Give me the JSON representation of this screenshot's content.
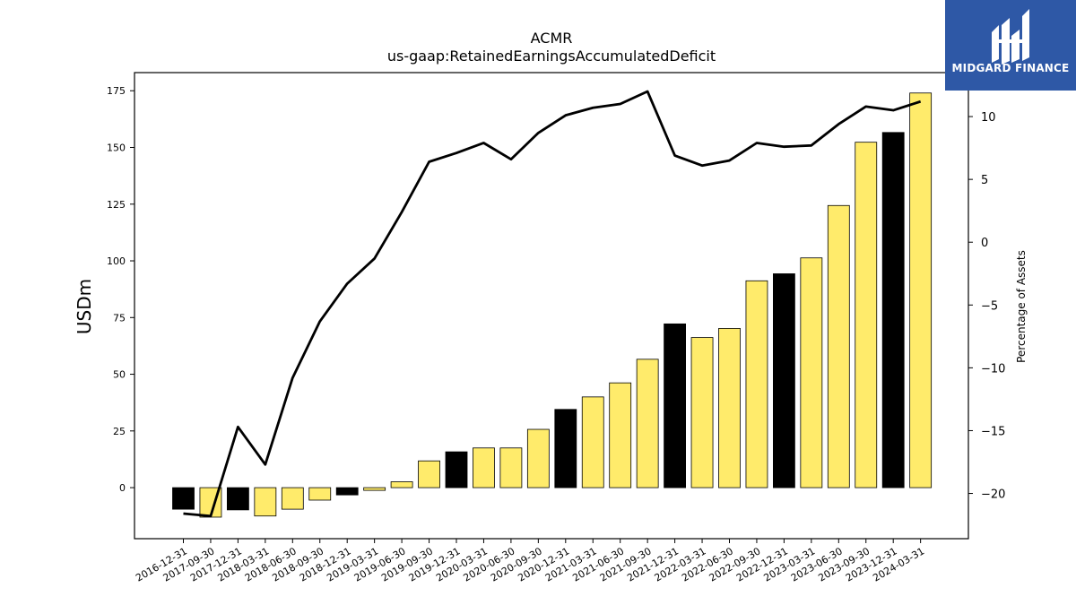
{
  "brand": {
    "name": "MIDGARD FINANCE",
    "bg_color": "#2e58a6"
  },
  "chart_data": {
    "type": "bar",
    "title": "ACMR",
    "subtitle": "us-gaap:RetainedEarningsAccumulatedDeficit",
    "ylabel": "USDm",
    "y2label": "Percentage of Assets",
    "categories": [
      "2016-12-31",
      "2017-09-30",
      "2017-12-31",
      "2018-03-31",
      "2018-06-30",
      "2018-09-30",
      "2018-12-31",
      "2019-03-31",
      "2019-06-30",
      "2019-09-30",
      "2019-12-31",
      "2020-03-31",
      "2020-06-30",
      "2020-09-30",
      "2020-12-31",
      "2021-03-31",
      "2021-06-30",
      "2021-09-30",
      "2021-12-31",
      "2022-03-31",
      "2022-06-30",
      "2022-09-30",
      "2022-12-31",
      "2023-03-31",
      "2023-06-30",
      "2023-09-30",
      "2023-12-31",
      "2024-03-31"
    ],
    "series": [
      {
        "type": "bar",
        "values": [
          -9.5,
          -13,
          -9.8,
          -12.5,
          -9.5,
          -5.5,
          -3.2,
          -1.2,
          2.6,
          11.8,
          15.8,
          17.5,
          17.5,
          25.7,
          34.5,
          40,
          46.2,
          56.6,
          72.2,
          66.2,
          70.2,
          91.2,
          94.3,
          101.3,
          124.4,
          152.3,
          156.6,
          174
        ],
        "colors": [
          "#000000",
          "#ffeb6b",
          "#000000",
          "#ffeb6b",
          "#ffeb6b",
          "#ffeb6b",
          "#000000",
          "#ffeb6b",
          "#ffeb6b",
          "#ffeb6b",
          "#000000",
          "#ffeb6b",
          "#ffeb6b",
          "#ffeb6b",
          "#000000",
          "#ffeb6b",
          "#ffeb6b",
          "#ffeb6b",
          "#000000",
          "#ffeb6b",
          "#ffeb6b",
          "#ffeb6b",
          "#000000",
          "#ffeb6b",
          "#ffeb6b",
          "#ffeb6b",
          "#000000",
          "#ffeb6b"
        ]
      },
      {
        "type": "line",
        "axis": "right",
        "color": "#000000",
        "values": [
          -21.6,
          -21.8,
          -14.7,
          -17.7,
          -10.8,
          -6.3,
          -3.3,
          -1.3,
          2.4,
          6.4,
          7.1,
          7.9,
          6.6,
          8.7,
          10.1,
          10.7,
          11,
          12,
          6.9,
          6.1,
          6.5,
          7.9,
          7.6,
          7.7,
          9.4,
          10.8,
          10.5,
          11.2
        ]
      }
    ],
    "ylim": [
      -22.5,
      183
    ],
    "yticks": [
      0,
      25,
      50,
      75,
      100,
      125,
      150,
      175
    ],
    "y2lim": [
      -23.6,
      13.5
    ],
    "y2ticks": [
      -20,
      -15,
      -10,
      -5,
      0,
      5,
      10
    ],
    "grid": false,
    "legend": "none"
  }
}
